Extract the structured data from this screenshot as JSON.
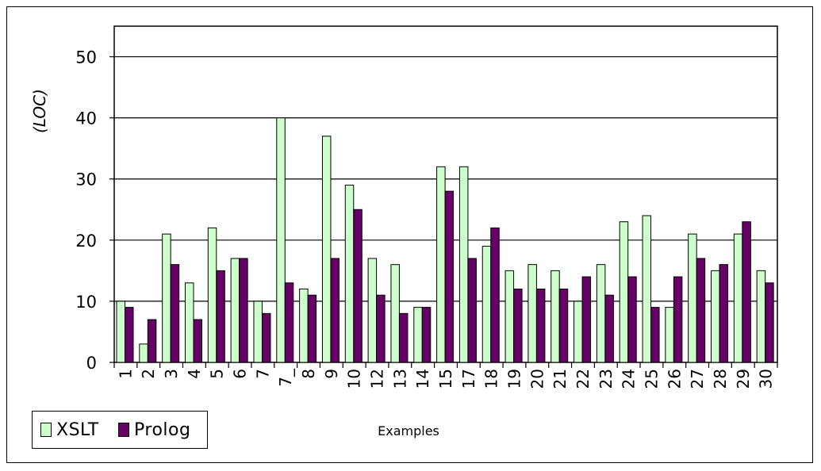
{
  "chart_data": {
    "type": "bar",
    "title": "",
    "xlabel": "Examples",
    "ylabel": "(LOC)",
    "ylim": [
      0,
      55
    ],
    "yticks": [
      0,
      10,
      20,
      30,
      40,
      50
    ],
    "grid": true,
    "legend_position": "bottom-left",
    "categories": [
      "1",
      "2",
      "3",
      "4",
      "5",
      "6",
      "7",
      "7_",
      "8",
      "9",
      "10",
      "12",
      "13",
      "14",
      "15",
      "17",
      "18",
      "19",
      "20",
      "21",
      "22",
      "23",
      "24",
      "25",
      "26",
      "27",
      "28",
      "29",
      "30"
    ],
    "series": [
      {
        "name": "XSLT",
        "color": "#ccffcc",
        "values": [
          10,
          3,
          21,
          13,
          22,
          17,
          10,
          40,
          12,
          37,
          29,
          17,
          16,
          9,
          32,
          32,
          19,
          15,
          16,
          15,
          10,
          16,
          23,
          24,
          9,
          21,
          15,
          21,
          15
        ]
      },
      {
        "name": "Prolog",
        "color": "#660066",
        "values": [
          9,
          7,
          16,
          7,
          15,
          17,
          8,
          13,
          11,
          17,
          25,
          11,
          8,
          9,
          28,
          17,
          22,
          12,
          12,
          12,
          14,
          11,
          14,
          9,
          14,
          17,
          16,
          23,
          13
        ]
      }
    ]
  }
}
